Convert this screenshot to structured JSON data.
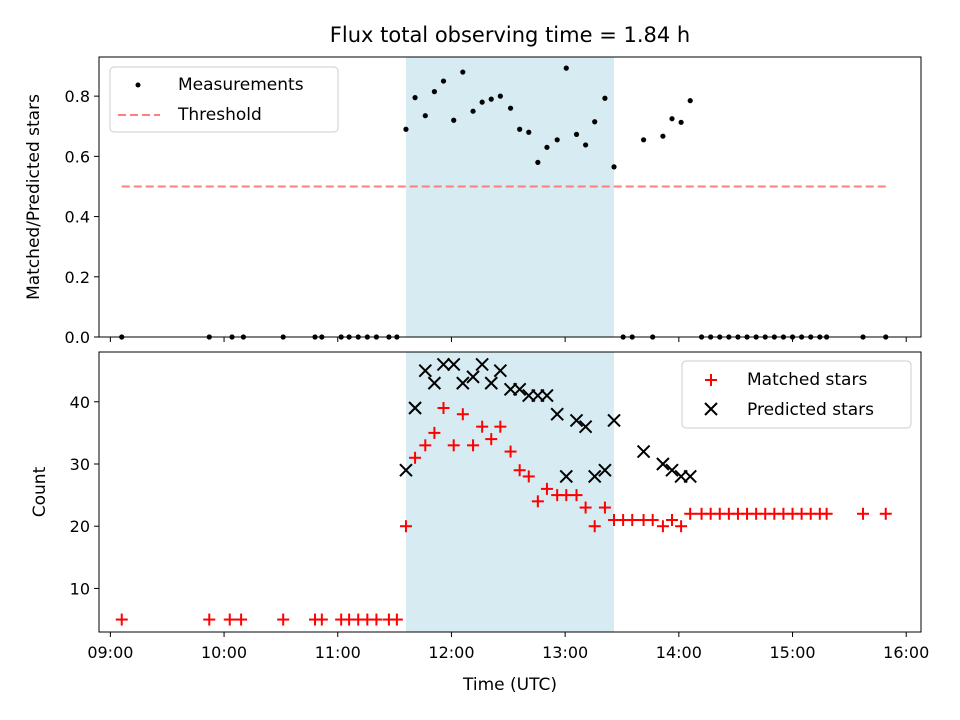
{
  "chart_data": [
    {
      "type": "scatter",
      "title": "Flux total observing time = 1.84 h",
      "ylabel": "Matched/Predicted stars",
      "ylim": [
        0.0,
        0.93
      ],
      "yticks": [
        0.0,
        0.2,
        0.4,
        0.6,
        0.8
      ],
      "ytick_labels": [
        "0.0",
        "0.2",
        "0.4",
        "0.6",
        "0.8"
      ],
      "legend": [
        "Measurements",
        "Threshold"
      ],
      "legend_position": "top-left",
      "highlight": {
        "start": 11.6,
        "end": 13.43,
        "color": "#add8e6"
      },
      "threshold": {
        "y": 0.5,
        "x_start": 9.1,
        "x_end": 15.82,
        "color": "#ff7f7f"
      },
      "series": [
        {
          "name": "Measurements",
          "color": "#000000",
          "x": [
            9.1,
            9.87,
            10.07,
            10.17,
            10.52,
            10.8,
            10.86,
            11.03,
            11.1,
            11.18,
            11.26,
            11.34,
            11.45,
            11.52,
            11.6,
            11.68,
            11.77,
            11.85,
            11.93,
            12.02,
            12.1,
            12.19,
            12.27,
            12.35,
            12.43,
            12.52,
            12.6,
            12.68,
            12.76,
            12.84,
            12.93,
            13.01,
            13.1,
            13.18,
            13.26,
            13.35,
            13.43,
            13.51,
            13.59,
            13.69,
            13.77,
            13.86,
            13.94,
            14.02,
            14.1,
            14.2,
            14.28,
            14.36,
            14.44,
            14.52,
            14.6,
            14.68,
            14.76,
            14.84,
            14.92,
            15.0,
            15.08,
            15.16,
            15.24,
            15.3,
            15.62,
            15.82
          ],
          "y": [
            0.0,
            0.0,
            0.0,
            0.0,
            0.0,
            0.0,
            0.0,
            0.0,
            0.0,
            0.0,
            0.0,
            0.0,
            0.0,
            0.0,
            0.69,
            0.795,
            0.735,
            0.815,
            0.85,
            0.72,
            0.88,
            0.75,
            0.78,
            0.79,
            0.8,
            0.76,
            0.69,
            0.68,
            0.58,
            0.63,
            0.655,
            0.893,
            0.673,
            0.638,
            0.715,
            0.793,
            0.565,
            0.0,
            0.0,
            0.655,
            0.0,
            0.667,
            0.725,
            0.713,
            0.785,
            0.0,
            0.0,
            0.0,
            0.0,
            0.0,
            0.0,
            0.0,
            0.0,
            0.0,
            0.0,
            0.0,
            0.0,
            0.0,
            0.0,
            0.0,
            0.0,
            0.0
          ]
        }
      ]
    },
    {
      "type": "scatter",
      "xlabel": "Time (UTC)",
      "ylabel": "Count",
      "xlim": [
        8.9,
        16.13
      ],
      "ylim": [
        3,
        48
      ],
      "xticks": [
        9,
        10,
        11,
        12,
        13,
        14,
        15,
        16
      ],
      "xtick_labels": [
        "09:00",
        "10:00",
        "11:00",
        "12:00",
        "13:00",
        "14:00",
        "15:00",
        "16:00"
      ],
      "yticks": [
        10,
        20,
        30,
        40
      ],
      "ytick_labels": [
        "10",
        "20",
        "30",
        "40"
      ],
      "legend": [
        "Matched stars",
        "Predicted stars"
      ],
      "legend_position": "top-right",
      "highlight": {
        "start": 11.6,
        "end": 13.43,
        "color": "#add8e6"
      },
      "series": [
        {
          "name": "Matched stars",
          "marker": "plus",
          "color": "#ff0000",
          "x": [
            9.1,
            9.87,
            10.05,
            10.15,
            10.52,
            10.8,
            10.86,
            11.03,
            11.1,
            11.18,
            11.26,
            11.34,
            11.45,
            11.52,
            11.6,
            11.68,
            11.77,
            11.85,
            11.93,
            12.02,
            12.1,
            12.19,
            12.27,
            12.35,
            12.43,
            12.52,
            12.6,
            12.68,
            12.76,
            12.84,
            12.93,
            13.01,
            13.1,
            13.18,
            13.26,
            13.35,
            13.43,
            13.51,
            13.59,
            13.69,
            13.77,
            13.86,
            13.94,
            14.02,
            14.1,
            14.2,
            14.28,
            14.36,
            14.44,
            14.52,
            14.6,
            14.68,
            14.76,
            14.84,
            14.92,
            15.0,
            15.08,
            15.16,
            15.24,
            15.3,
            15.62,
            15.82
          ],
          "y": [
            5,
            5,
            5,
            5,
            5,
            5,
            5,
            5,
            5,
            5,
            5,
            5,
            5,
            5,
            20,
            31,
            33,
            35,
            39,
            33,
            38,
            33,
            36,
            34,
            36,
            32,
            29,
            28,
            24,
            26,
            25,
            25,
            25,
            23,
            20,
            23,
            21,
            21,
            21,
            21,
            21,
            20,
            21,
            20,
            22,
            22,
            22,
            22,
            22,
            22,
            22,
            22,
            22,
            22,
            22,
            22,
            22,
            22,
            22,
            22,
            22,
            22
          ]
        },
        {
          "name": "Predicted stars",
          "marker": "x",
          "color": "#000000",
          "x": [
            11.6,
            11.68,
            11.77,
            11.85,
            11.93,
            12.02,
            12.1,
            12.19,
            12.27,
            12.35,
            12.43,
            12.52,
            12.6,
            12.68,
            12.76,
            12.84,
            12.93,
            13.01,
            13.1,
            13.18,
            13.26,
            13.35,
            13.43,
            13.69,
            13.86,
            13.94,
            14.02,
            14.1
          ],
          "y": [
            29,
            39,
            45,
            43,
            46,
            46,
            43,
            44,
            46,
            43,
            45,
            42,
            42,
            41,
            41,
            41,
            38,
            28,
            37,
            36,
            28,
            29,
            37,
            32,
            30,
            29,
            28,
            28
          ]
        }
      ]
    }
  ]
}
